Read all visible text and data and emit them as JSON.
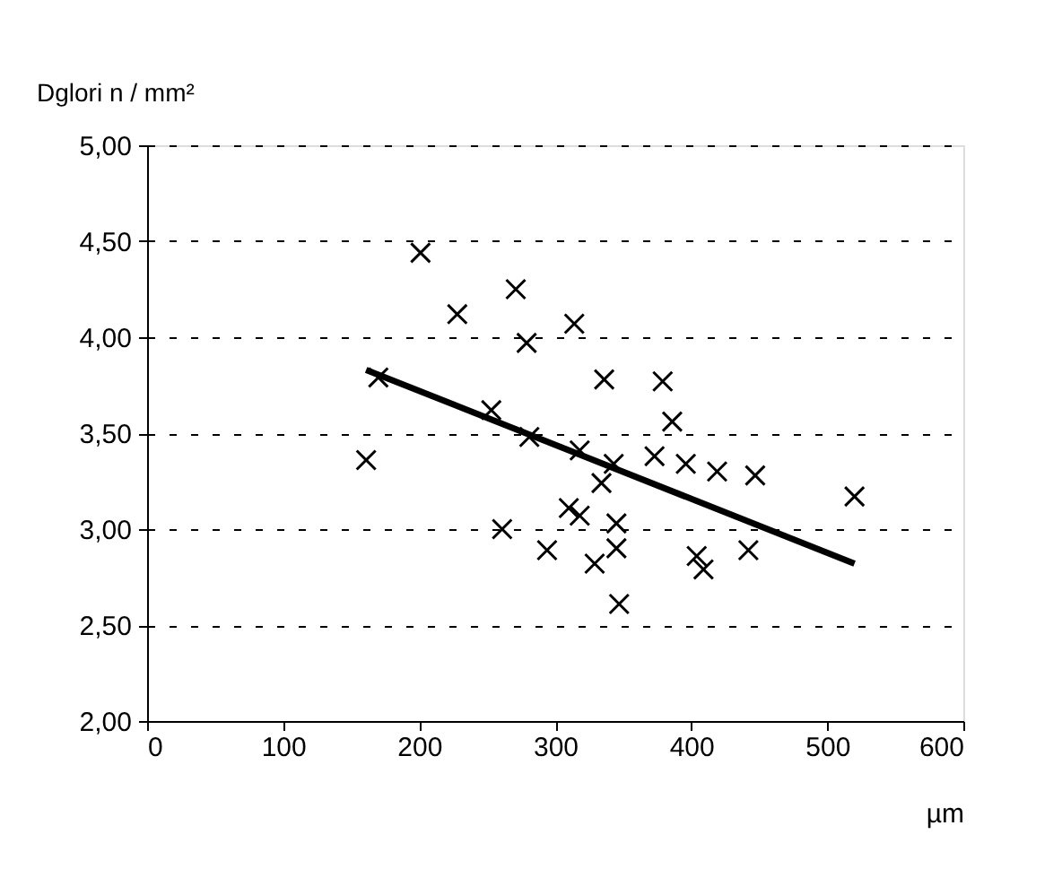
{
  "chart_data": {
    "type": "scatter",
    "ylabel": "Dglori n / mm²",
    "xlabel": "µm",
    "xlim": [
      0,
      600
    ],
    "xticks": [
      0,
      100,
      200,
      300,
      400,
      500,
      600
    ],
    "ylim": [
      2,
      5
    ],
    "yticks": [
      {
        "value": 2,
        "label": "2,00"
      },
      {
        "value": 2.5,
        "label": "2,50"
      },
      {
        "value": 3,
        "label": "3,00"
      },
      {
        "value": 3.5,
        "label": "3,50"
      },
      {
        "value": 4,
        "label": "4,00"
      },
      {
        "value": 4.5,
        "label": "4,50"
      },
      {
        "value": 5,
        "label": "5,00"
      }
    ],
    "grid": "y",
    "series": [
      {
        "marker": "cross",
        "color": "#000000",
        "x": [
          201,
          228,
          271,
          279,
          170,
          253,
          281,
          161,
          261,
          294,
          314,
          336,
          379,
          386,
          318,
          343,
          373,
          396,
          419,
          447,
          520,
          334,
          310,
          318,
          345,
          345,
          329,
          404,
          409,
          442,
          347
        ],
        "values": [
          4.44,
          4.12,
          4.25,
          3.97,
          3.79,
          3.62,
          3.48,
          3.36,
          3.0,
          2.89,
          4.07,
          3.78,
          3.77,
          3.56,
          3.41,
          3.34,
          3.38,
          3.34,
          3.3,
          3.28,
          3.17,
          3.24,
          3.11,
          3.07,
          3.03,
          2.9,
          2.82,
          2.86,
          2.79,
          2.89,
          2.61
        ]
      },
      {
        "type": "line",
        "marker": "none",
        "color": "#000000",
        "x": [
          161,
          520
        ],
        "values": [
          3.83,
          2.82
        ]
      }
    ]
  }
}
